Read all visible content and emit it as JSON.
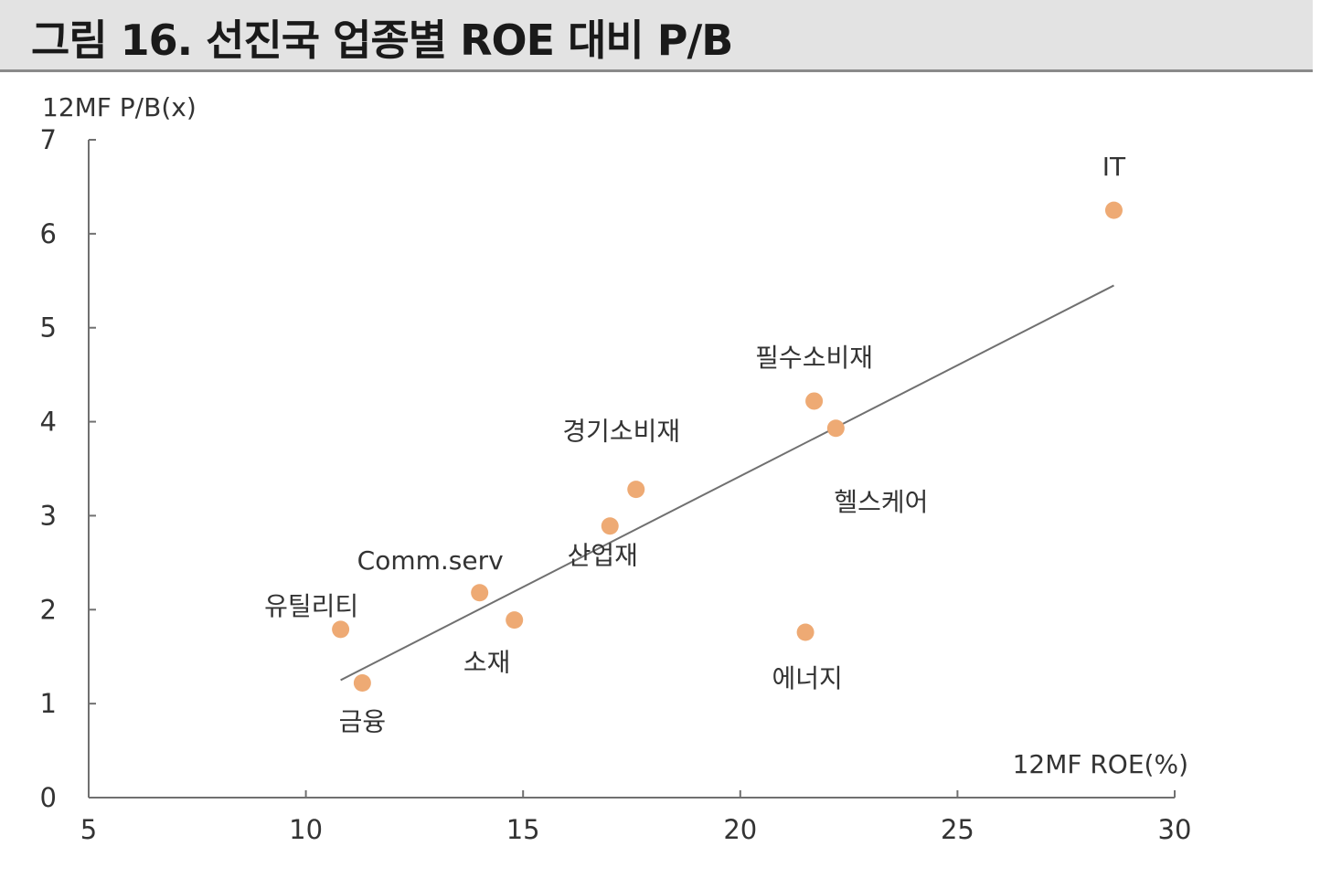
{
  "title": "그림 16. 선진국 업종별 ROE 대비 P/B",
  "colors": {
    "point": "#eeaa74",
    "trendline": "#707070",
    "axis": "#707070",
    "title_bg": "#e3e3e3"
  },
  "chart_data": {
    "type": "scatter",
    "title": "그림 16. 선진국 업종별 ROE 대비 P/B",
    "xlabel": "12MF ROE(%)",
    "ylabel": "12MF P/B(x)",
    "xlim": [
      5,
      30
    ],
    "ylim": [
      0,
      7
    ],
    "xticks": [
      5,
      10,
      15,
      20,
      25,
      30
    ],
    "yticks": [
      0,
      1,
      2,
      3,
      4,
      5,
      6,
      7
    ],
    "grid": false,
    "points": [
      {
        "label": "IT",
        "x": 28.6,
        "y": 6.25
      },
      {
        "label": "필수소비재",
        "x": 21.7,
        "y": 4.22
      },
      {
        "label": "헬스케어",
        "x": 22.2,
        "y": 3.93
      },
      {
        "label": "경기소비재",
        "x": 17.6,
        "y": 3.28
      },
      {
        "label": "산업재",
        "x": 17.0,
        "y": 2.89
      },
      {
        "label": "Comm.serv",
        "x": 14.0,
        "y": 2.18
      },
      {
        "label": "소재",
        "x": 14.8,
        "y": 1.89
      },
      {
        "label": "유틸리티",
        "x": 10.8,
        "y": 1.79
      },
      {
        "label": "금융",
        "x": 11.3,
        "y": 1.22
      },
      {
        "label": "에너지",
        "x": 21.5,
        "y": 1.76
      }
    ],
    "trendline": {
      "x": [
        10.8,
        28.6
      ],
      "y": [
        1.25,
        5.45
      ]
    }
  }
}
